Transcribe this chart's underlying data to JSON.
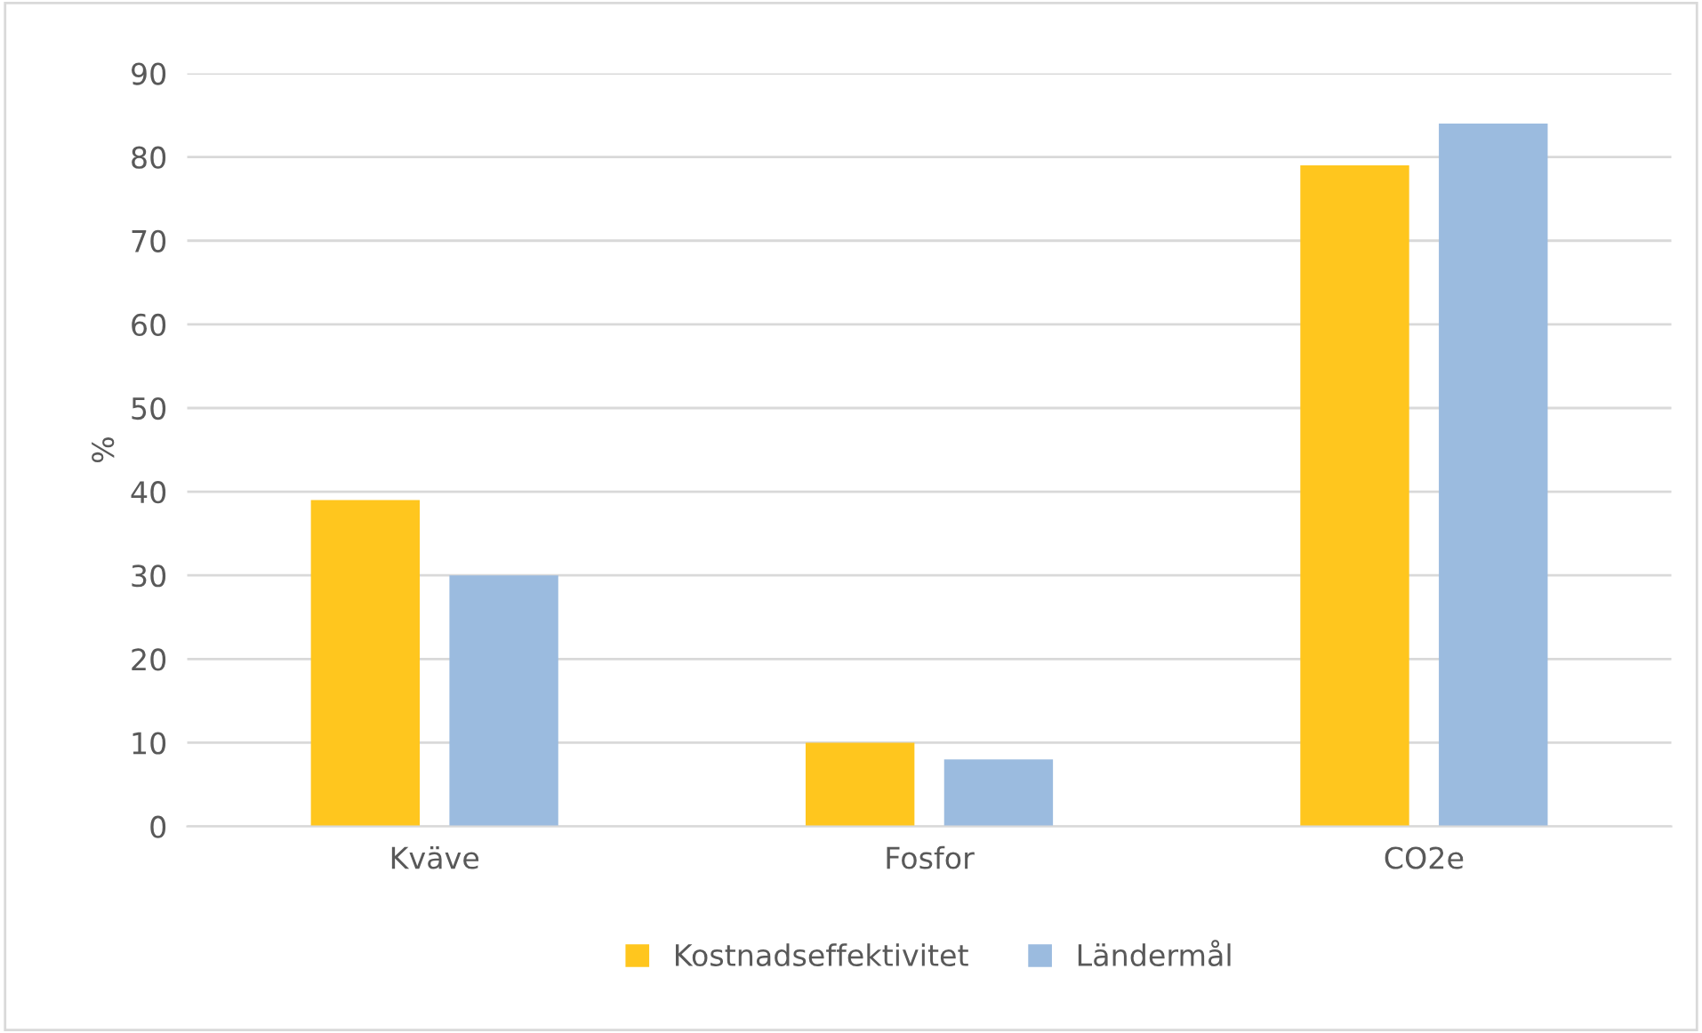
{
  "chart_data": {
    "type": "bar",
    "ylabel": "%",
    "categories": [
      "Kväve",
      "Fosfor",
      "CO2e"
    ],
    "series": [
      {
        "name": "Kostnadseffektivitet",
        "color": "#ffc61e",
        "values": [
          39,
          10,
          79
        ]
      },
      {
        "name": "Ländermål",
        "color": "#9bbbdf",
        "values": [
          30,
          8,
          84
        ]
      }
    ],
    "ylim": [
      0,
      90
    ],
    "yticks": [
      0,
      10,
      20,
      30,
      40,
      50,
      60,
      70,
      80,
      90
    ],
    "grid": "y",
    "legend": "bottom"
  }
}
